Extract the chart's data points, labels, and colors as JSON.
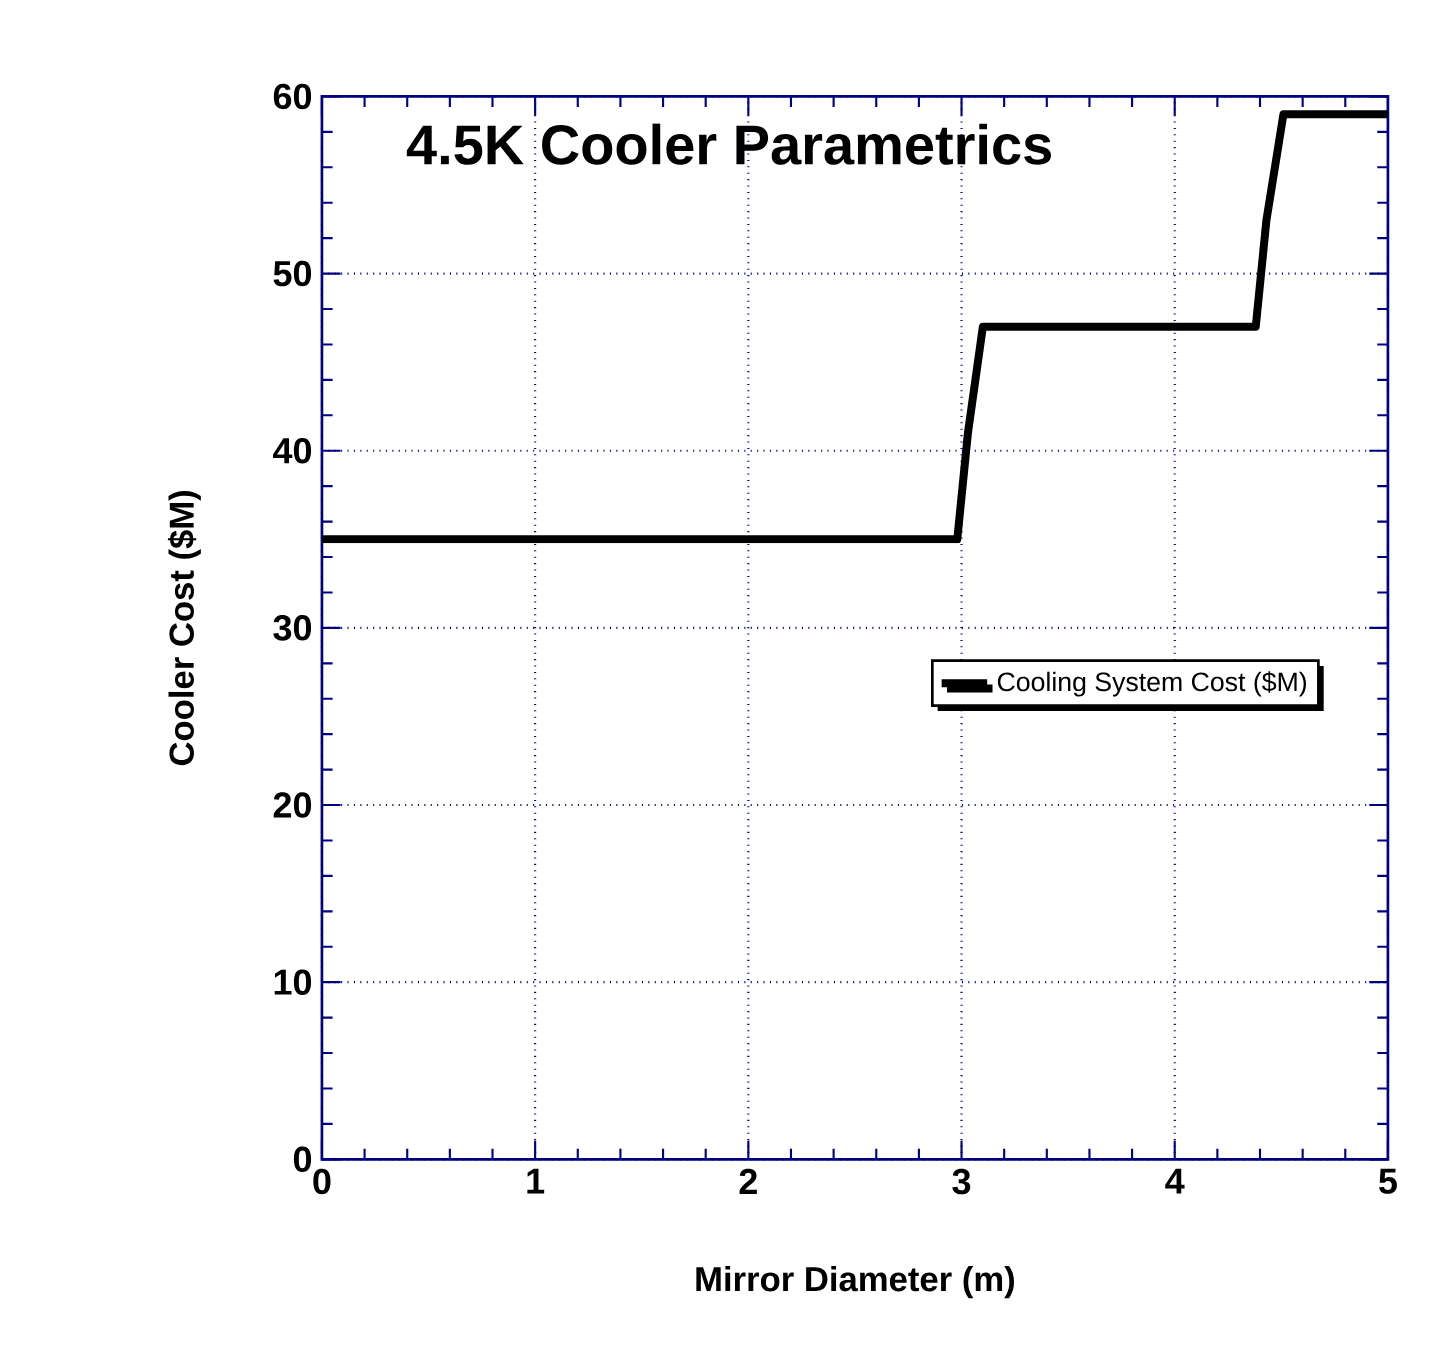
{
  "chart_data": {
    "type": "line",
    "title": "4.5K Cooler Parametrics",
    "xlabel": "Mirror Diameter (m)",
    "ylabel": "Cooler Cost ($M)",
    "series": [
      {
        "name": "Cooling System Cost ($M)",
        "color": "#000000",
        "x": [
          0,
          2.98,
          3.03,
          3.1,
          4.38,
          4.43,
          4.51,
          5
        ],
        "values": [
          35,
          35,
          41,
          47,
          47,
          53,
          59,
          59
        ]
      }
    ],
    "xlim": [
      0,
      5
    ],
    "ylim": [
      0,
      60
    ],
    "xticks": [
      0,
      1,
      2,
      3,
      4,
      5
    ],
    "yticks": [
      0,
      10,
      20,
      30,
      40,
      50,
      60
    ],
    "grid": true,
    "legend": "right"
  }
}
